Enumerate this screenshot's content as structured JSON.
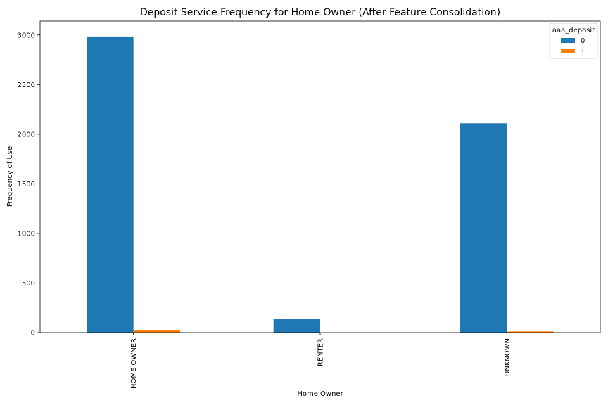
{
  "chart_data": {
    "type": "bar",
    "title": "Deposit Service Frequency for Home Owner (After Feature Consolidation)",
    "xlabel": "Home Owner",
    "ylabel": "Frequency of Use",
    "categories": [
      "HOME OWNER",
      "RENTER",
      "UNKNOWN"
    ],
    "series": [
      {
        "name": "0",
        "values": [
          2985,
          135,
          2110
        ],
        "color": "#1f77b4"
      },
      {
        "name": "1",
        "values": [
          22,
          0,
          12
        ],
        "color": "#ff7f0e"
      }
    ],
    "ylim": [
      0,
      3140
    ],
    "yticks": [
      0,
      500,
      1000,
      1500,
      2000,
      2500,
      3000
    ],
    "grid": false,
    "legend": {
      "title": "aaa_deposit",
      "placement": "top-right"
    }
  }
}
